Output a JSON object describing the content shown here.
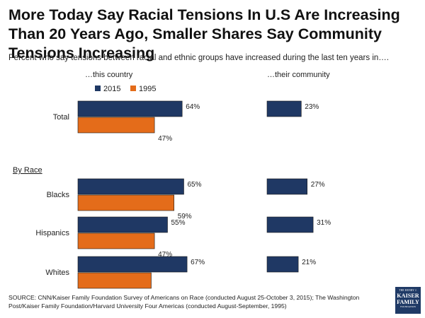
{
  "header": {
    "title": "More Today Say Racial Tensions In U.S Are Increasing Than 20 Years Ago, Smaller Shares Say Community Tensions Increasing",
    "subtitle": "Percent who say tensions between racial and ethnic groups have increased during the last ten years in…."
  },
  "chart_data": {
    "type": "bar",
    "orientation": "horizontal",
    "unit": "%",
    "panels": [
      {
        "name": "…this country",
        "series": [
          {
            "name": "2015",
            "color": "#1f3864",
            "values": [
              64,
              65,
              55,
              67
            ]
          },
          {
            "name": "1995",
            "color": "#e46c1a",
            "values": [
              47,
              59,
              47,
              45
            ]
          }
        ]
      },
      {
        "name": "…their community",
        "series": [
          {
            "name": "2015",
            "color": "#1f3864",
            "values": [
              23,
              27,
              31,
              21
            ]
          }
        ]
      }
    ],
    "categories": [
      "Total",
      "Blacks",
      "Hispanics",
      "Whites"
    ],
    "group_label": "By Race",
    "legend": [
      {
        "name": "2015",
        "color": "#1f3864"
      },
      {
        "name": "1995",
        "color": "#e46c1a"
      }
    ],
    "legend_position": "top-left"
  },
  "footer": {
    "source": "SOURCE: CNN/Kaiser Family Foundation Survey of Americans on Race (conducted August 25-October 3, 2015); The Washington Post/Kaiser Family Foundation/Harvard University Four Americas (conducted August-September, 1995)"
  },
  "logo": {
    "top": "THE HENRY J.",
    "line1": "KAISER",
    "line2": "FAMILY",
    "bottom": "FOUNDATION"
  }
}
